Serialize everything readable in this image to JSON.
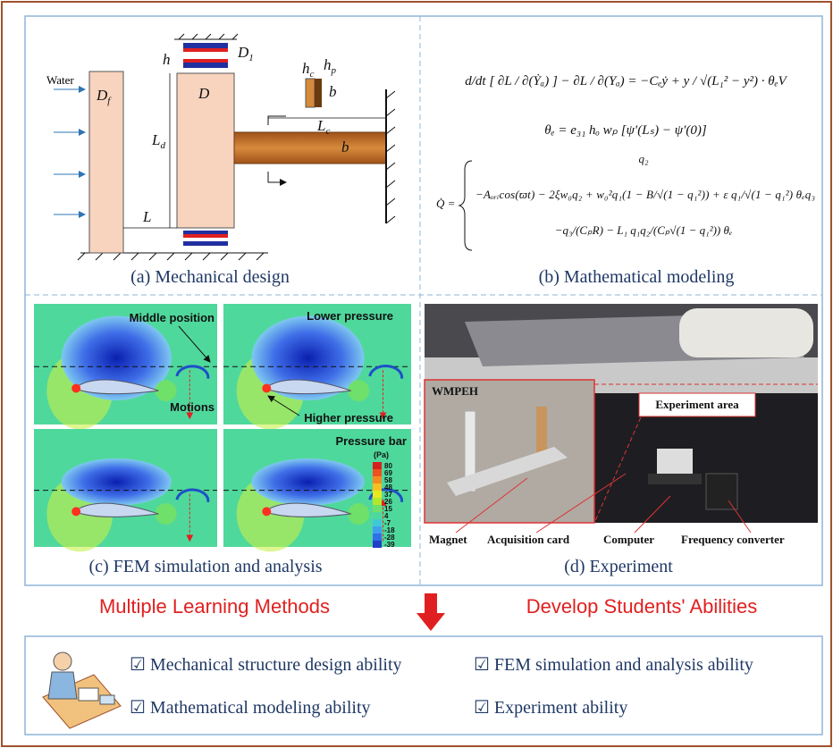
{
  "panels": {
    "mechanical": {
      "caption": "(a) Mechanical design",
      "water": "Water",
      "labels": {
        "Df": [
          "D",
          "f"
        ],
        "h": [
          "h",
          ""
        ],
        "D1": [
          "D",
          "1"
        ],
        "D": [
          "D",
          ""
        ],
        "Ld": [
          "L",
          "d"
        ],
        "L": [
          "L",
          ""
        ],
        "Lc": [
          "L",
          "c"
        ],
        "b_beam": [
          "b",
          ""
        ],
        "hc": [
          "h",
          "c"
        ],
        "hp": [
          "h",
          "p"
        ],
        "b_piezo": [
          "b",
          ""
        ]
      }
    },
    "math": {
      "caption": "(b) Mathematical modeling",
      "equations": [
        "d/dt [ ∂L / ∂(Ẏₐ) ] − ∂L / ∂(Yₐ) = −Cₑẏ + y / √(L₁² − y²) · θₑV",
        "θₑ = e₃₁ hₒ wₚ [ψ′(Lₛ) − ψ′(0)]",
        "q₂",
        "−Aₒᵣᵢcos(ϖt) − 2ξw₀q₂ + w₀²q₁(1 − B/√(1 − q₁²)) + ε q₁/√(1 − q₁²) θₑq₃",
        "−q₃/(CₚR) − L₁ q₁q₂/(Cₚ√(1 − q₁²)) θₑ"
      ],
      "lhs": "Q̇ ="
    },
    "fem": {
      "caption": "(c) FEM simulation and analysis",
      "middle": "Middle position",
      "lower": "Lower pressure",
      "motions": "Motions",
      "higher": "Higher pressure",
      "bar_title": "Pressure bar",
      "bar_unit": "(Pa)",
      "bar_ticks": [
        "80",
        "69",
        "58",
        "48",
        "37",
        "26",
        "15",
        "4",
        "-7",
        "-18",
        "-28",
        "-39"
      ]
    },
    "experiment": {
      "caption": "(d) Experiment",
      "wmpeh": "WMPEH",
      "area": "Experiment area",
      "magnet": "Magnet",
      "card": "Acquisition card",
      "computer": "Computer",
      "converter": "Frequency converter"
    }
  },
  "banner": {
    "left": "Multiple Learning Methods",
    "right": "Develop Students' Abilities"
  },
  "abilities": [
    "☑ Mechanical structure design ability",
    "☑ FEM simulation and analysis ability",
    "☑ Mathematical modeling ability",
    "☑ Experiment ability"
  ]
}
